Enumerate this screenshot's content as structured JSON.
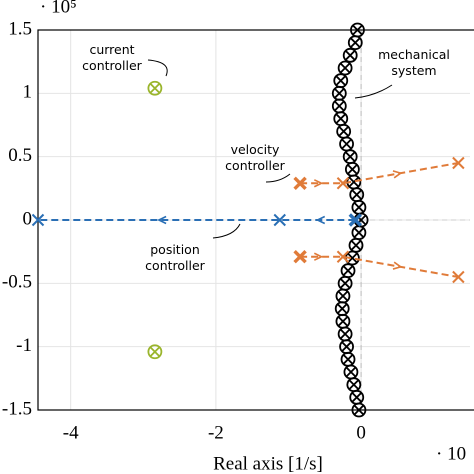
{
  "chart_data": {
    "type": "scatter",
    "x_label": "Real axis [1/s]",
    "x_exponent": "· 10",
    "y_exponent": "· 10⁵",
    "xlim": [
      -4.45,
      1.5
    ],
    "xticks": [
      -4,
      -2,
      0
    ],
    "ylim": [
      -1.5,
      1.5
    ],
    "yticks": [
      1.5,
      1,
      0.5,
      0,
      -0.5,
      -1,
      -1.5
    ],
    "grid": true,
    "annotations": [
      "current controller",
      "mechanical system",
      "velocity controller",
      "position controller"
    ],
    "series": [
      {
        "color": "#000000",
        "marker": "circle-x",
        "line": false,
        "x": [
          -0.05,
          -0.08,
          -0.15,
          -0.22,
          -0.28,
          -0.3,
          -0.3,
          -0.28,
          -0.24,
          -0.2,
          -0.15,
          -0.12,
          -0.1,
          -0.06,
          -0.03,
          0,
          -0.03,
          -0.07,
          -0.12,
          -0.18,
          -0.22,
          -0.25,
          -0.26,
          -0.25,
          -0.22,
          -0.2,
          -0.18,
          -0.14,
          -0.1,
          -0.06,
          -0.03
        ],
        "values": [
          1.5,
          1.4,
          1.3,
          1.2,
          1.1,
          1.0,
          0.9,
          0.8,
          0.7,
          0.6,
          0.5,
          0.4,
          0.3,
          0.2,
          0.1,
          0,
          -0.1,
          -0.2,
          -0.3,
          -0.4,
          -0.5,
          -0.6,
          -0.7,
          -0.8,
          -0.9,
          -1.0,
          -1.1,
          -1.2,
          -1.3,
          -1.4,
          -1.5
        ]
      },
      {
        "color": "#9ab52c",
        "marker": "circle-x",
        "line": false,
        "x": [
          -2.84,
          -2.84
        ],
        "values": [
          1.04,
          -1.04
        ]
      },
      {
        "color": "#e07b39",
        "marker": "x",
        "line": true,
        "x": [
          -0.84,
          -0.25,
          1.34
        ],
        "values": [
          0.29,
          0.29,
          0.45
        ]
      },
      {
        "color": "#e07b39",
        "marker": "x",
        "line": true,
        "x": [
          -0.84,
          -0.25,
          1.34
        ],
        "values": [
          -0.29,
          -0.29,
          -0.45
        ]
      },
      {
        "color": "#2a6fb5",
        "marker": "x",
        "line": true,
        "x": [
          -0.08,
          -1.12,
          -4.45
        ],
        "values": [
          0,
          0,
          0
        ]
      }
    ]
  }
}
